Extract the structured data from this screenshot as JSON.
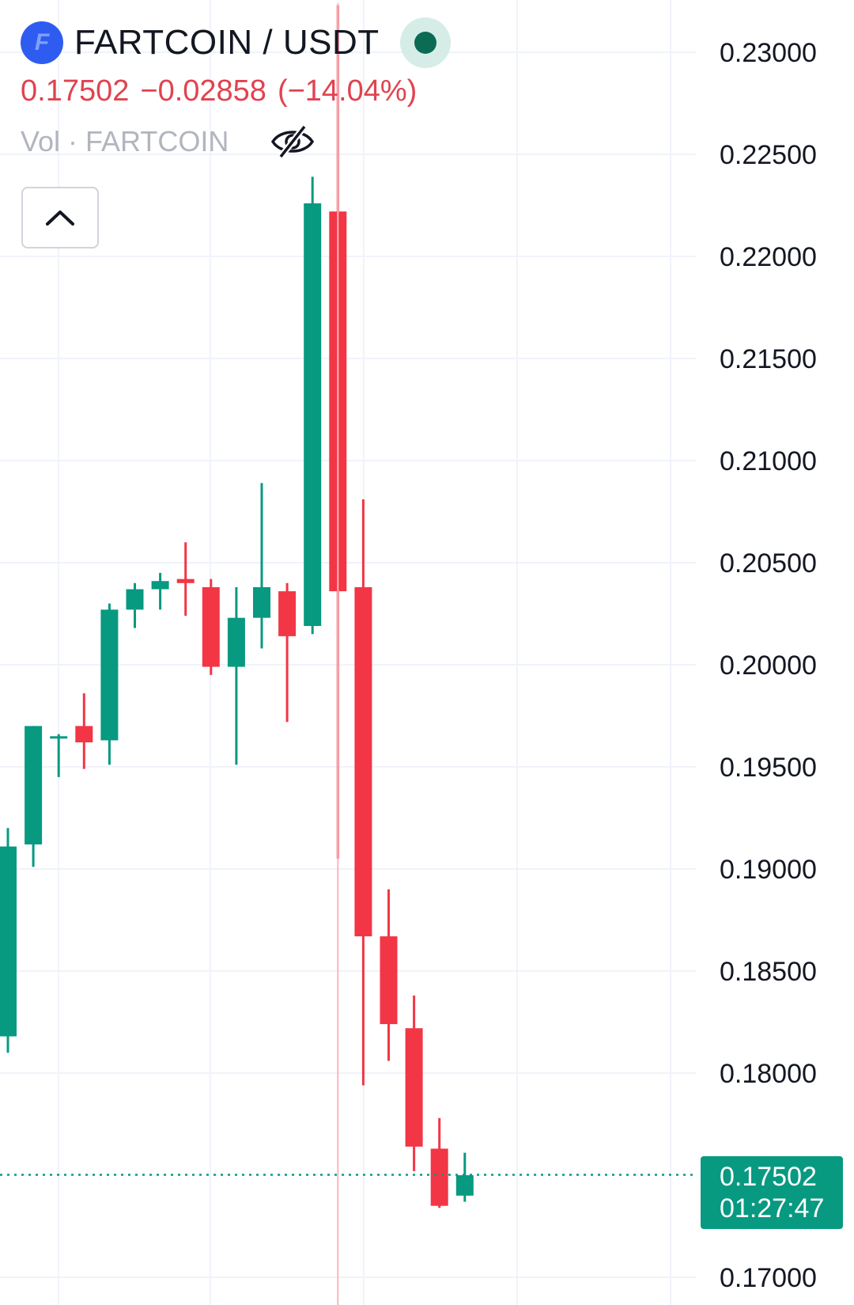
{
  "header": {
    "logo_letter": "F",
    "symbol": "FARTCOIN / USDT",
    "last_price": "0.17502",
    "change": "−0.02858",
    "change_pct": "(−14.04%)",
    "volume_label": "Vol · FARTCOIN"
  },
  "icons": {
    "logo": "fartcoin-logo-icon",
    "live": "live-status-dot-icon",
    "eye": "eye-slash-icon",
    "collapse": "chevron-up-icon"
  },
  "current": {
    "price": "0.17502",
    "countdown": "01:27:47"
  },
  "colors": {
    "up": "#089981",
    "down": "#f23645",
    "change_text": "#e0434f",
    "grid": "#f0f3fa"
  },
  "chart_data": {
    "type": "candlestick",
    "y_ticks": [
      "0.23000",
      "0.22500",
      "0.22000",
      "0.21500",
      "0.21000",
      "0.20500",
      "0.20000",
      "0.19500",
      "0.19000",
      "0.18500",
      "0.18000",
      "0.17502",
      "0.17000"
    ],
    "ylim": [
      0.1685,
      0.2325
    ],
    "current_price": 0.17502,
    "candles": [
      {
        "o": 0.1818,
        "h": 0.192,
        "l": 0.181,
        "c": 0.1911
      },
      {
        "o": 0.1912,
        "h": 0.197,
        "l": 0.1901,
        "c": 0.197
      },
      {
        "o": 0.1965,
        "h": 0.1966,
        "l": 0.1945,
        "c": 0.1965
      },
      {
        "o": 0.197,
        "h": 0.1986,
        "l": 0.1949,
        "c": 0.1962
      },
      {
        "o": 0.1963,
        "h": 0.203,
        "l": 0.1951,
        "c": 0.2027
      },
      {
        "o": 0.2027,
        "h": 0.204,
        "l": 0.2018,
        "c": 0.2037
      },
      {
        "o": 0.2037,
        "h": 0.2045,
        "l": 0.2027,
        "c": 0.2041
      },
      {
        "o": 0.2042,
        "h": 0.206,
        "l": 0.2024,
        "c": 0.204
      },
      {
        "o": 0.2038,
        "h": 0.2042,
        "l": 0.1995,
        "c": 0.1999
      },
      {
        "o": 0.1999,
        "h": 0.2038,
        "l": 0.1951,
        "c": 0.2023
      },
      {
        "o": 0.2023,
        "h": 0.2089,
        "l": 0.2008,
        "c": 0.2038
      },
      {
        "o": 0.2036,
        "h": 0.204,
        "l": 0.1972,
        "c": 0.2014
      },
      {
        "o": 0.2019,
        "h": 0.2239,
        "l": 0.2015,
        "c": 0.2226
      },
      {
        "o": 0.2222,
        "h": 0.2323,
        "l": 0.1905,
        "c": 0.2036
      },
      {
        "o": 0.2038,
        "h": 0.2081,
        "l": 0.1794,
        "c": 0.1867
      },
      {
        "o": 0.1867,
        "h": 0.189,
        "l": 0.1806,
        "c": 0.1824
      },
      {
        "o": 0.1822,
        "h": 0.1838,
        "l": 0.1752,
        "c": 0.1764
      },
      {
        "o": 0.1763,
        "h": 0.1778,
        "l": 0.1734,
        "c": 0.1735
      },
      {
        "o": 0.174,
        "h": 0.1761,
        "l": 0.1737,
        "c": 0.175
      }
    ]
  }
}
